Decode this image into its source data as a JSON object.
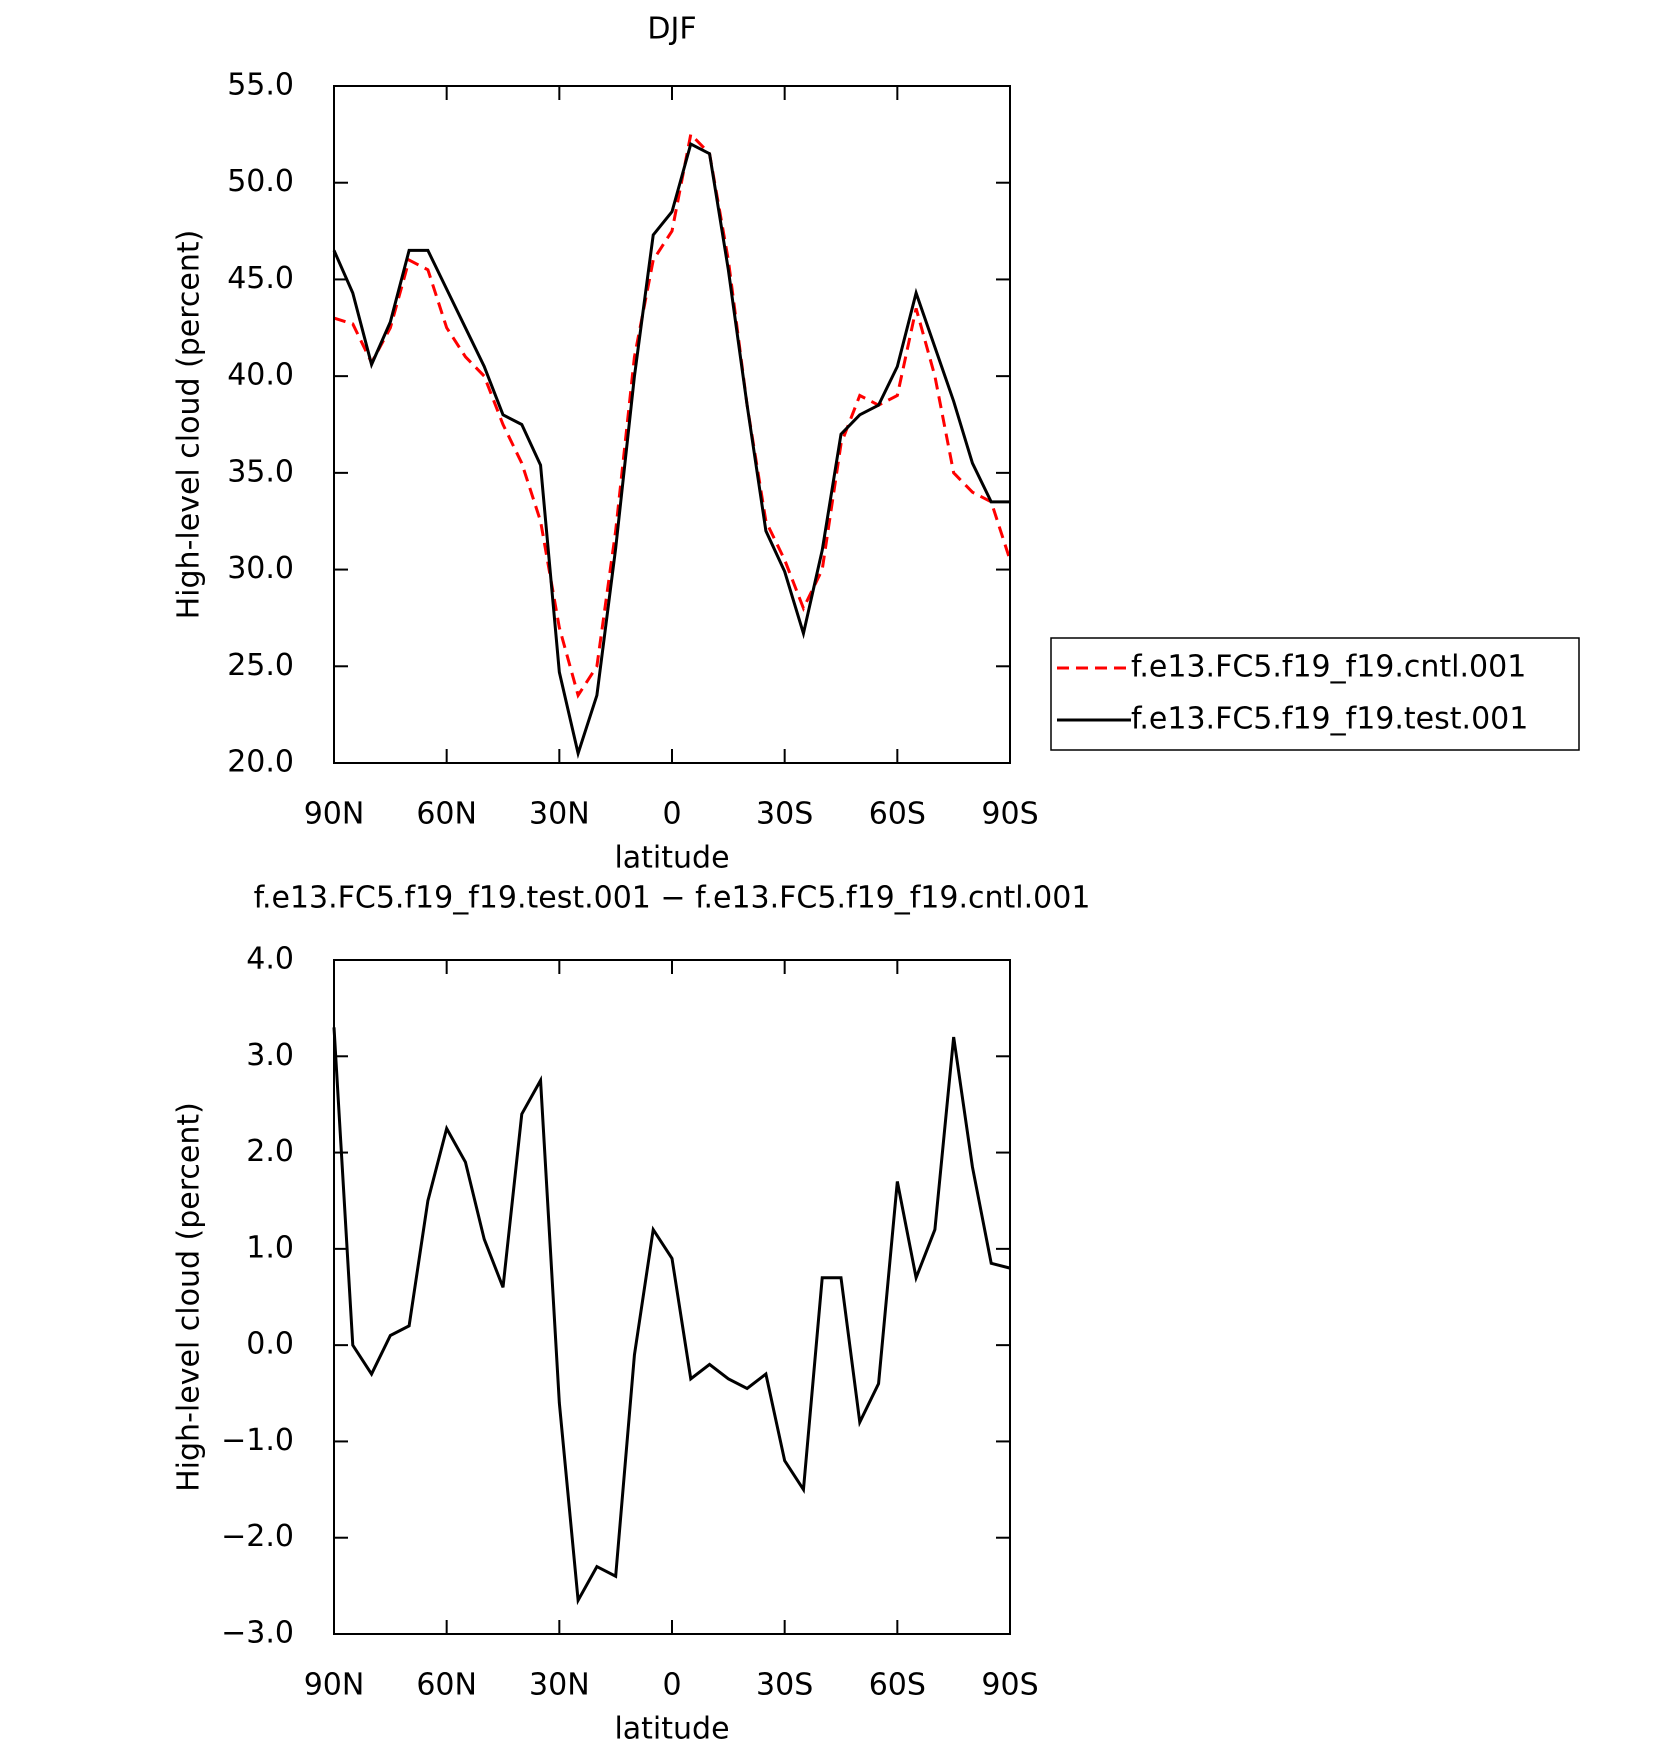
{
  "chart_data": [
    {
      "type": "line",
      "title": "DJF",
      "xlabel": "latitude",
      "ylabel": "High-level cloud (percent)",
      "x": [
        90,
        85,
        80,
        75,
        70,
        65,
        60,
        55,
        50,
        45,
        40,
        35,
        30,
        25,
        20,
        15,
        10,
        5,
        0,
        -5,
        -10,
        -15,
        -20,
        -25,
        -30,
        -35,
        -40,
        -45,
        -50,
        -55,
        -60,
        -65,
        -70,
        -75,
        -80,
        -85,
        -90
      ],
      "series": [
        {
          "name": "f.e13.FC5.f19_f19.cntl.001",
          "color": "#ff0000",
          "dash": "dashed",
          "values": [
            43,
            42.7,
            40.7,
            42.5,
            46,
            45.5,
            42.5,
            41,
            40,
            37.5,
            35.5,
            32.5,
            27,
            23.5,
            25,
            32,
            41,
            46,
            47.5,
            52.5,
            51.5,
            46,
            38.5,
            32.5,
            30.5,
            28,
            30,
            36.5,
            39,
            38.5,
            39,
            43.5,
            40,
            35,
            34,
            33.5,
            30.5
          ]
        },
        {
          "name": "f.e13.FC5.f19_f19.test.001",
          "color": "#000000",
          "dash": "solid",
          "values": [
            46.5,
            44.3,
            40.6,
            42.8,
            46.5,
            46.5,
            44.5,
            42.5,
            40.5,
            38,
            37.5,
            35.4,
            24.7,
            20.5,
            23.5,
            31.1,
            40,
            47.3,
            48.5,
            52,
            51.5,
            45.5,
            38.5,
            32,
            29.9,
            26.7,
            31,
            37,
            38,
            38.5,
            40.5,
            44.3,
            41.5,
            38.7,
            35.5,
            33.5,
            33.5
          ]
        }
      ],
      "xlim": [
        90,
        -90
      ],
      "xticks": [
        {
          "value": 90,
          "label": "90N"
        },
        {
          "value": 60,
          "label": "60N"
        },
        {
          "value": 30,
          "label": "30N"
        },
        0,
        {
          "value": -30,
          "label": "30S"
        },
        {
          "value": -60,
          "label": "60S"
        },
        {
          "value": -90,
          "label": "90S"
        }
      ],
      "ylim": [
        20,
        55
      ],
      "yticks": [
        {
          "value": 20,
          "label": "20.0"
        },
        {
          "value": 25,
          "label": "25.0"
        },
        {
          "value": 30,
          "label": "30.0"
        },
        {
          "value": 35,
          "label": "35.0"
        },
        {
          "value": 40,
          "label": "40.0"
        },
        {
          "value": 45,
          "label": "45.0"
        },
        {
          "value": 50,
          "label": "50.0"
        },
        {
          "value": 55,
          "label": "55.0"
        }
      ],
      "legend": "right"
    },
    {
      "type": "line",
      "title": "f.e13.FC5.f19_f19.test.001 − f.e13.FC5.f19_f19.cntl.001",
      "xlabel": "latitude",
      "ylabel": "High-level cloud (percent)",
      "x": [
        90,
        85,
        80,
        75,
        70,
        65,
        60,
        55,
        50,
        45,
        40,
        35,
        30,
        25,
        20,
        15,
        10,
        5,
        0,
        -5,
        -10,
        -15,
        -20,
        -25,
        -30,
        -35,
        -40,
        -45,
        -50,
        -55,
        -60,
        -65,
        -70,
        -75,
        -80,
        -85,
        -90
      ],
      "values": [
        3.3,
        0,
        -0.3,
        0.1,
        0.2,
        1.5,
        2.25,
        1.9,
        1.1,
        0.6,
        2.4,
        2.75,
        -0.6,
        -2.65,
        -2.3,
        -2.4,
        -0.1,
        1.2,
        0.9,
        -0.35,
        -0.2,
        -0.35,
        -0.45,
        -0.3,
        -1.2,
        -1.5,
        0.7,
        0.7,
        -0.8,
        -0.4,
        1.7,
        0.7,
        1.2,
        3.2,
        1.85,
        0.85,
        0.8
      ],
      "color": "#000000",
      "xlim": [
        90,
        -90
      ],
      "xticks": [
        {
          "value": 90,
          "label": "90N"
        },
        {
          "value": 60,
          "label": "60N"
        },
        {
          "value": 30,
          "label": "30N"
        },
        0,
        {
          "value": -30,
          "label": "30S"
        },
        {
          "value": -60,
          "label": "60S"
        },
        {
          "value": -90,
          "label": "90S"
        }
      ],
      "ylim": [
        -3,
        4
      ],
      "yticks": [
        {
          "value": -3,
          "label": "−3.0"
        },
        {
          "value": -2,
          "label": "−2.0"
        },
        {
          "value": -1,
          "label": "−1.0"
        },
        {
          "value": 0,
          "label": "0.0"
        },
        {
          "value": 1,
          "label": "1.0"
        },
        {
          "value": 2,
          "label": "2.0"
        },
        {
          "value": 3,
          "label": "3.0"
        },
        {
          "value": 4,
          "label": "4.0"
        }
      ]
    }
  ]
}
